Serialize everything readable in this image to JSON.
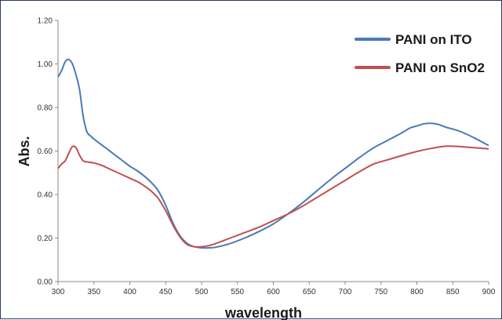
{
  "chart_data": {
    "type": "line",
    "title": "",
    "xlabel": "wavelength",
    "ylabel": "Abs.",
    "xlim": [
      300,
      900
    ],
    "ylim": [
      0,
      1.2
    ],
    "x_ticks": [
      "300",
      "350",
      "400",
      "450",
      "500",
      "550",
      "600",
      "650",
      "700",
      "750",
      "800",
      "850",
      "900"
    ],
    "y_ticks": [
      "0.00",
      "0.20",
      "0.40",
      "0.60",
      "0.80",
      "1.00",
      "1.20"
    ],
    "grid": false,
    "legend_position": "top-right",
    "series": [
      {
        "name": "PANI on ITO",
        "color": "#4a7ab5",
        "points": [
          [
            300,
            0.94
          ],
          [
            305,
            0.97
          ],
          [
            310,
            1.01
          ],
          [
            315,
            1.02
          ],
          [
            320,
            1.0
          ],
          [
            325,
            0.95
          ],
          [
            330,
            0.88
          ],
          [
            335,
            0.76
          ],
          [
            340,
            0.69
          ],
          [
            345,
            0.67
          ],
          [
            350,
            0.655
          ],
          [
            360,
            0.63
          ],
          [
            370,
            0.605
          ],
          [
            380,
            0.58
          ],
          [
            390,
            0.555
          ],
          [
            400,
            0.53
          ],
          [
            410,
            0.51
          ],
          [
            420,
            0.485
          ],
          [
            430,
            0.455
          ],
          [
            440,
            0.415
          ],
          [
            450,
            0.35
          ],
          [
            460,
            0.27
          ],
          [
            470,
            0.21
          ],
          [
            480,
            0.175
          ],
          [
            490,
            0.16
          ],
          [
            500,
            0.155
          ],
          [
            510,
            0.155
          ],
          [
            520,
            0.158
          ],
          [
            540,
            0.175
          ],
          [
            560,
            0.2
          ],
          [
            580,
            0.23
          ],
          [
            600,
            0.265
          ],
          [
            620,
            0.31
          ],
          [
            640,
            0.36
          ],
          [
            660,
            0.415
          ],
          [
            680,
            0.47
          ],
          [
            700,
            0.52
          ],
          [
            720,
            0.57
          ],
          [
            740,
            0.615
          ],
          [
            760,
            0.65
          ],
          [
            780,
            0.685
          ],
          [
            790,
            0.705
          ],
          [
            800,
            0.715
          ],
          [
            810,
            0.725
          ],
          [
            820,
            0.727
          ],
          [
            830,
            0.722
          ],
          [
            840,
            0.71
          ],
          [
            860,
            0.69
          ],
          [
            880,
            0.66
          ],
          [
            900,
            0.625
          ]
        ]
      },
      {
        "name": "PANI on SnO2",
        "color": "#c0504d",
        "points": [
          [
            300,
            0.52
          ],
          [
            305,
            0.54
          ],
          [
            310,
            0.555
          ],
          [
            315,
            0.59
          ],
          [
            320,
            0.62
          ],
          [
            325,
            0.615
          ],
          [
            330,
            0.58
          ],
          [
            335,
            0.555
          ],
          [
            340,
            0.55
          ],
          [
            350,
            0.545
          ],
          [
            360,
            0.535
          ],
          [
            370,
            0.52
          ],
          [
            380,
            0.505
          ],
          [
            390,
            0.49
          ],
          [
            400,
            0.475
          ],
          [
            410,
            0.46
          ],
          [
            420,
            0.44
          ],
          [
            430,
            0.415
          ],
          [
            440,
            0.38
          ],
          [
            450,
            0.325
          ],
          [
            460,
            0.26
          ],
          [
            470,
            0.205
          ],
          [
            480,
            0.17
          ],
          [
            490,
            0.16
          ],
          [
            500,
            0.16
          ],
          [
            510,
            0.165
          ],
          [
            520,
            0.175
          ],
          [
            540,
            0.2
          ],
          [
            560,
            0.225
          ],
          [
            580,
            0.25
          ],
          [
            600,
            0.28
          ],
          [
            620,
            0.31
          ],
          [
            640,
            0.345
          ],
          [
            660,
            0.385
          ],
          [
            680,
            0.425
          ],
          [
            700,
            0.465
          ],
          [
            720,
            0.505
          ],
          [
            740,
            0.54
          ],
          [
            760,
            0.56
          ],
          [
            780,
            0.58
          ],
          [
            800,
            0.598
          ],
          [
            820,
            0.612
          ],
          [
            840,
            0.622
          ],
          [
            860,
            0.62
          ],
          [
            880,
            0.615
          ],
          [
            900,
            0.61
          ]
        ]
      }
    ]
  }
}
